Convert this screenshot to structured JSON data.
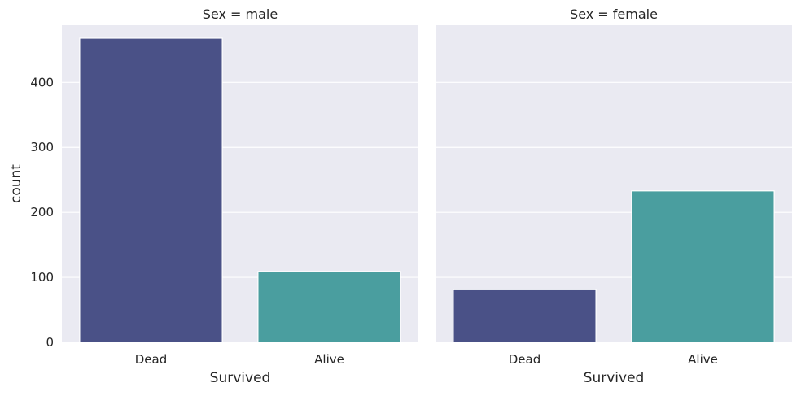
{
  "chart_data": [
    {
      "type": "bar",
      "title": "Sex = male",
      "xlabel": "Survived",
      "ylabel": "count",
      "categories": [
        "Dead",
        "Alive"
      ],
      "values": [
        468,
        109
      ],
      "colors": [
        "#4a5187",
        "#4a9e9f"
      ],
      "ylim": [
        0,
        488
      ],
      "yticks": [
        0,
        100,
        200,
        300,
        400
      ],
      "grid": true
    },
    {
      "type": "bar",
      "title": "Sex = female",
      "xlabel": "Survived",
      "ylabel": "",
      "categories": [
        "Dead",
        "Alive"
      ],
      "values": [
        81,
        233
      ],
      "colors": [
        "#4a5187",
        "#4a9e9f"
      ],
      "ylim": [
        0,
        488
      ],
      "yticks": [
        0,
        100,
        200,
        300,
        400
      ],
      "grid": true
    }
  ],
  "style": {
    "panel_background": "#eaeaf2",
    "grid_color": "#ffffff",
    "text_color": "#262626"
  }
}
